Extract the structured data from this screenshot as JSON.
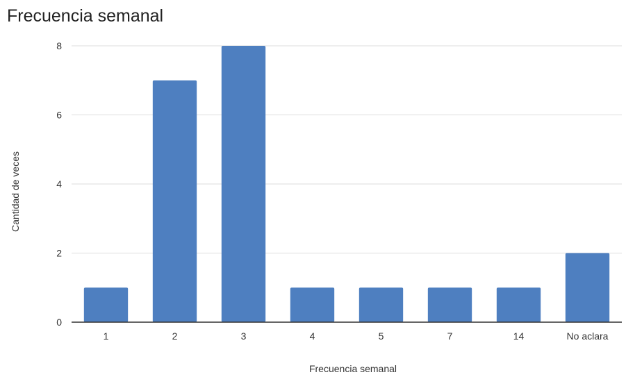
{
  "chart_data": {
    "type": "bar",
    "title": "Frecuencia semanal",
    "xlabel": "Frecuencia semanal",
    "ylabel": "Cantidad de veces",
    "categories": [
      "1",
      "2",
      "3",
      "4",
      "5",
      "7",
      "14",
      "No aclara"
    ],
    "values": [
      1,
      7,
      8,
      1,
      1,
      1,
      1,
      2
    ],
    "ylim": [
      0,
      8
    ],
    "yticks": [
      0,
      2,
      4,
      6,
      8
    ],
    "grid": true,
    "legend": "none",
    "colors": {
      "bar": "#4e7fc0",
      "gridline": "#dedede",
      "axis": "#333333",
      "text": "#222222"
    }
  }
}
